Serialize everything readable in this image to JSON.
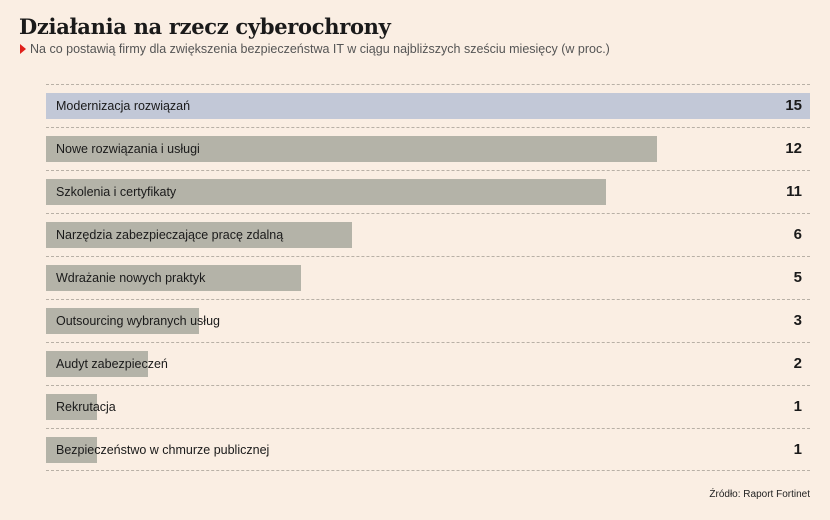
{
  "chart_data": {
    "type": "bar",
    "orientation": "horizontal",
    "title": "Działania na rzecz cyberochrony",
    "subtitle": "Na co postawią firmy dla zwiększenia bezpieczeństwa IT w ciągu najbliższych sześciu miesięcy (w proc.)",
    "categories": [
      "Modernizacja rozwiązań",
      "Nowe rozwiązania i usługi",
      "Szkolenia i certyfikaty",
      "Narzędzia zabezpieczające pracę zdalną",
      "Wdrażanie nowych praktyk",
      "Outsourcing wybranych usług",
      "Audyt zabezpieczeń",
      "Rekrutacja",
      "Bezpieczeństwo w chmurze publicznej"
    ],
    "values": [
      15,
      12,
      11,
      6,
      5,
      3,
      2,
      1,
      1
    ],
    "xlim": [
      0,
      15
    ],
    "highlight_index": 0,
    "colors": {
      "bar": "#b4b3a8",
      "highlight": "#c2c8d7",
      "background": "#faeee3",
      "marker": "#e0201b"
    },
    "grid": "dashed-row-separators",
    "source": "Źródło: Raport Fortinet"
  }
}
